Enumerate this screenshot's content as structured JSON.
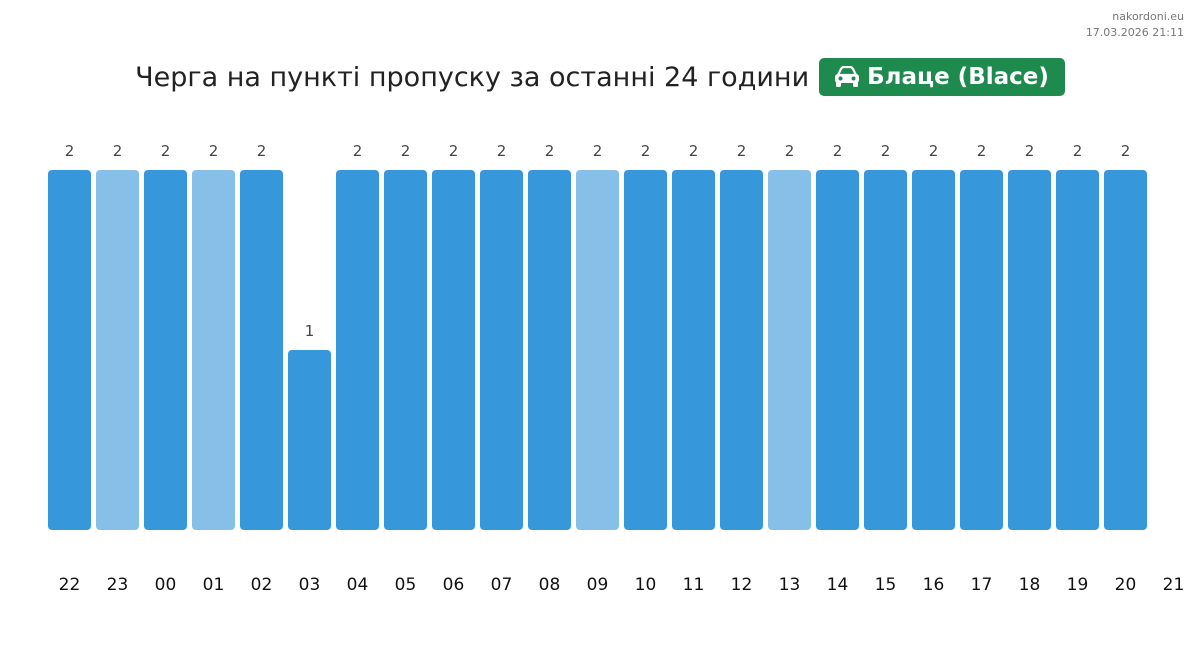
{
  "source": {
    "site": "nakordoni.eu",
    "timestamp": "17.03.2026 21:11"
  },
  "title": "Черга на пункті пропуску за останні 24 години",
  "badge": {
    "icon": "car-icon",
    "label": "Блаце (Blace)",
    "color": "#1e8a4e"
  },
  "colors": {
    "bar": "#3797db",
    "bar_light": "#86bfe8",
    "text": "#333333"
  },
  "chart_data": {
    "type": "bar",
    "categories": [
      "22",
      "23",
      "00",
      "01",
      "02",
      "03",
      "04",
      "05",
      "06",
      "07",
      "08",
      "09",
      "10",
      "11",
      "12",
      "13",
      "14",
      "15",
      "16",
      "17",
      "18",
      "19",
      "20"
    ],
    "extra_tick": "21",
    "values": [
      2,
      2,
      2,
      2,
      2,
      1,
      2,
      2,
      2,
      2,
      2,
      2,
      2,
      2,
      2,
      2,
      2,
      2,
      2,
      2,
      2,
      2,
      2
    ],
    "light_bars": [
      "23",
      "01",
      "09",
      "13"
    ],
    "ylim": [
      0,
      2
    ],
    "grid": false,
    "legend": "none"
  }
}
